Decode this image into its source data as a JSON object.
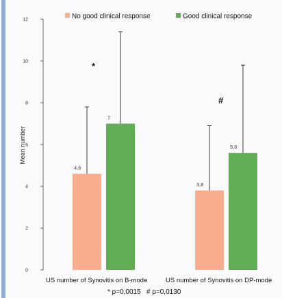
{
  "colors": {
    "no_response": "#f8ad8c",
    "good_response": "#5fae53",
    "frame_border": "#8fb0d6"
  },
  "chart_data": {
    "type": "bar",
    "categories": [
      "US number of Synovitis on B-mode",
      "US number of Synovitis on DP-mode"
    ],
    "series": [
      {
        "name": "No good clinical response",
        "values": [
          4.6,
          3.8
        ],
        "error_upper": [
          7.8,
          6.9
        ],
        "labels": [
          "4,6",
          "3,8"
        ]
      },
      {
        "name": "Good clinical response",
        "values": [
          7,
          5.6
        ],
        "error_upper": [
          11.4,
          9.8
        ],
        "labels": [
          "7",
          "5,6"
        ]
      }
    ],
    "ylabel": "Mean number",
    "ylim": [
      0,
      12
    ],
    "yticks": [
      0,
      2,
      4,
      6,
      8,
      10,
      12
    ],
    "grid": false,
    "legend_position": "top",
    "markers": [
      "*",
      "#"
    ],
    "footnote": "* p=0,0015   # p=0,0130"
  }
}
